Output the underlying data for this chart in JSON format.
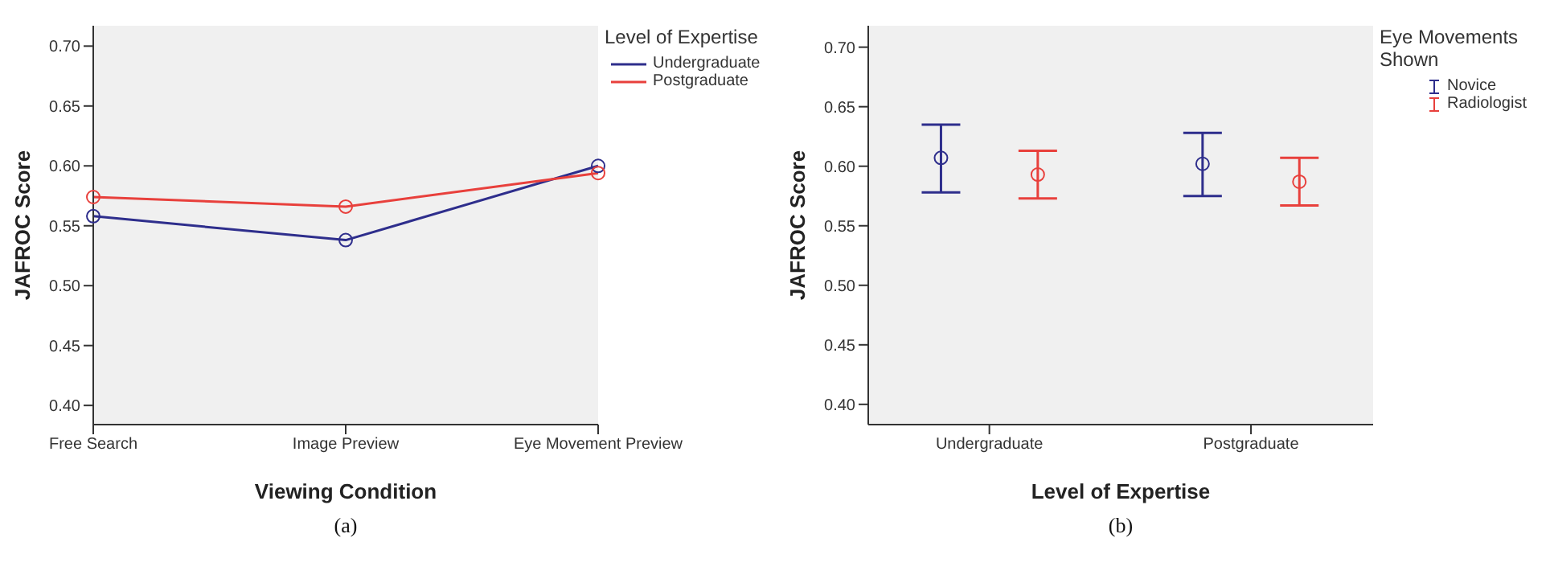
{
  "chart_data": [
    {
      "type": "line",
      "xlabel": "Viewing Condition",
      "ylabel": "JAFROC Score",
      "legend_title": "Level of Expertise",
      "categories": [
        "Free Search",
        "Image Preview",
        "Eye Movement Preview"
      ],
      "series": [
        {
          "name": "Undergraduate",
          "color": "#2e2e8c",
          "values": [
            0.558,
            0.538,
            0.6
          ]
        },
        {
          "name": "Postgraduate",
          "color": "#e8403c",
          "values": [
            0.574,
            0.566,
            0.594
          ]
        }
      ],
      "ylim": [
        0.384,
        0.717
      ],
      "yticks": [
        {
          "value": 0.4,
          "label": "0.40"
        },
        {
          "value": 0.45,
          "label": "0.45"
        },
        {
          "value": 0.5,
          "label": "0.50"
        },
        {
          "value": 0.55,
          "label": "0.55"
        },
        {
          "value": 0.6,
          "label": "0.60"
        },
        {
          "value": 0.65,
          "label": "0.65"
        },
        {
          "value": 0.7,
          "label": "0.70"
        }
      ],
      "grid": false,
      "legend": "top right",
      "marker": "circle",
      "line_style": "solid",
      "annotations": [
        "(a)"
      ]
    },
    {
      "type": "scatter",
      "xlabel": "Level of Expertise",
      "ylabel": "JAFROC Score",
      "legend_title": "Eye Movements Shown",
      "categories": [
        "Undergraduate",
        "Postgraduate"
      ],
      "series": [
        {
          "name": "Novice",
          "color": "#2e2e8c",
          "values": [
            0.607,
            0.602
          ],
          "errors": [
            [
              0.578,
              0.635
            ],
            [
              0.575,
              0.628
            ]
          ]
        },
        {
          "name": "Radiologist",
          "color": "#e8403c",
          "values": [
            0.593,
            0.587
          ],
          "errors": [
            [
              0.573,
              0.613
            ],
            [
              0.567,
              0.607
            ]
          ]
        }
      ],
      "ylim": [
        0.383,
        0.718
      ],
      "yticks": [
        {
          "value": 0.4,
          "label": "0.40"
        },
        {
          "value": 0.45,
          "label": "0.45"
        },
        {
          "value": 0.5,
          "label": "0.50"
        },
        {
          "value": 0.55,
          "label": "0.55"
        },
        {
          "value": 0.6,
          "label": "0.60"
        },
        {
          "value": 0.65,
          "label": "0.65"
        },
        {
          "value": 0.7,
          "label": "0.70"
        }
      ],
      "grid": false,
      "legend": "top right",
      "marker": "circle",
      "annotations": [
        "(b)"
      ]
    }
  ]
}
